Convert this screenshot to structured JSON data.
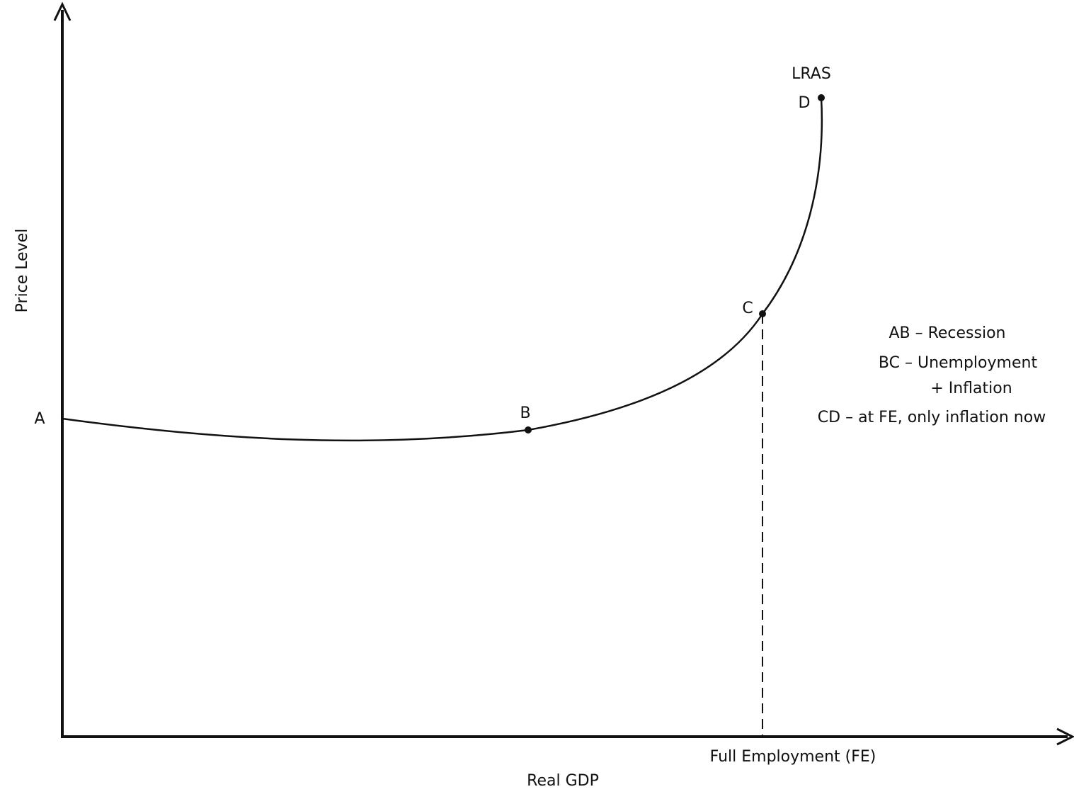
{
  "chart_data": {
    "type": "line",
    "title": "",
    "xlabel": "Real GDP",
    "ylabel": "Price Level",
    "curve_label": "LRAS",
    "full_employment_label": "Full Employment (FE)",
    "points": [
      {
        "label": "A"
      },
      {
        "label": "B"
      },
      {
        "label": "C"
      },
      {
        "label": "D"
      }
    ],
    "legend": [
      "AB – Recession",
      "BC – Unemployment",
      "+ Inflation",
      "CD – at FE, only inflation now"
    ],
    "colors": {
      "line": "#111111",
      "background": "#ffffff"
    }
  }
}
